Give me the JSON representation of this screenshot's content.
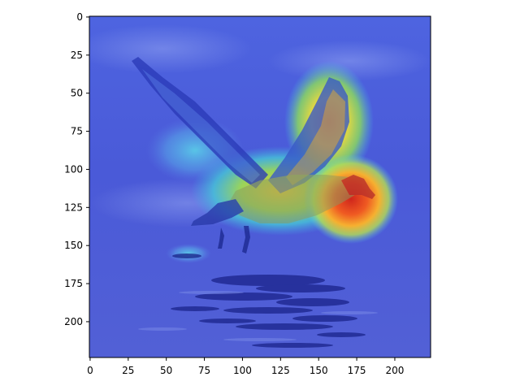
{
  "figure": {
    "image_subject": "seabird in flight over water with saliency heatmap overlay",
    "colormap": "jet",
    "overlay_colors": {
      "background_blue": "#3f4fd8",
      "deep_blue": "#1f2aa8",
      "cyan": "#41c8e6",
      "green": "#7fdc6a",
      "yellow": "#e8e040",
      "orange": "#f08a2a",
      "red": "#d83020"
    }
  },
  "axes": {
    "x_ticks": [
      "0",
      "25",
      "50",
      "75",
      "100",
      "125",
      "150",
      "175",
      "200"
    ],
    "y_ticks": [
      "0",
      "25",
      "50",
      "75",
      "100",
      "125",
      "150",
      "175",
      "200"
    ],
    "x_tick_values": [
      0,
      25,
      50,
      75,
      100,
      125,
      150,
      175,
      200
    ],
    "y_tick_values": [
      0,
      25,
      50,
      75,
      100,
      125,
      150,
      175,
      200
    ],
    "extent": [
      0,
      223
    ]
  }
}
